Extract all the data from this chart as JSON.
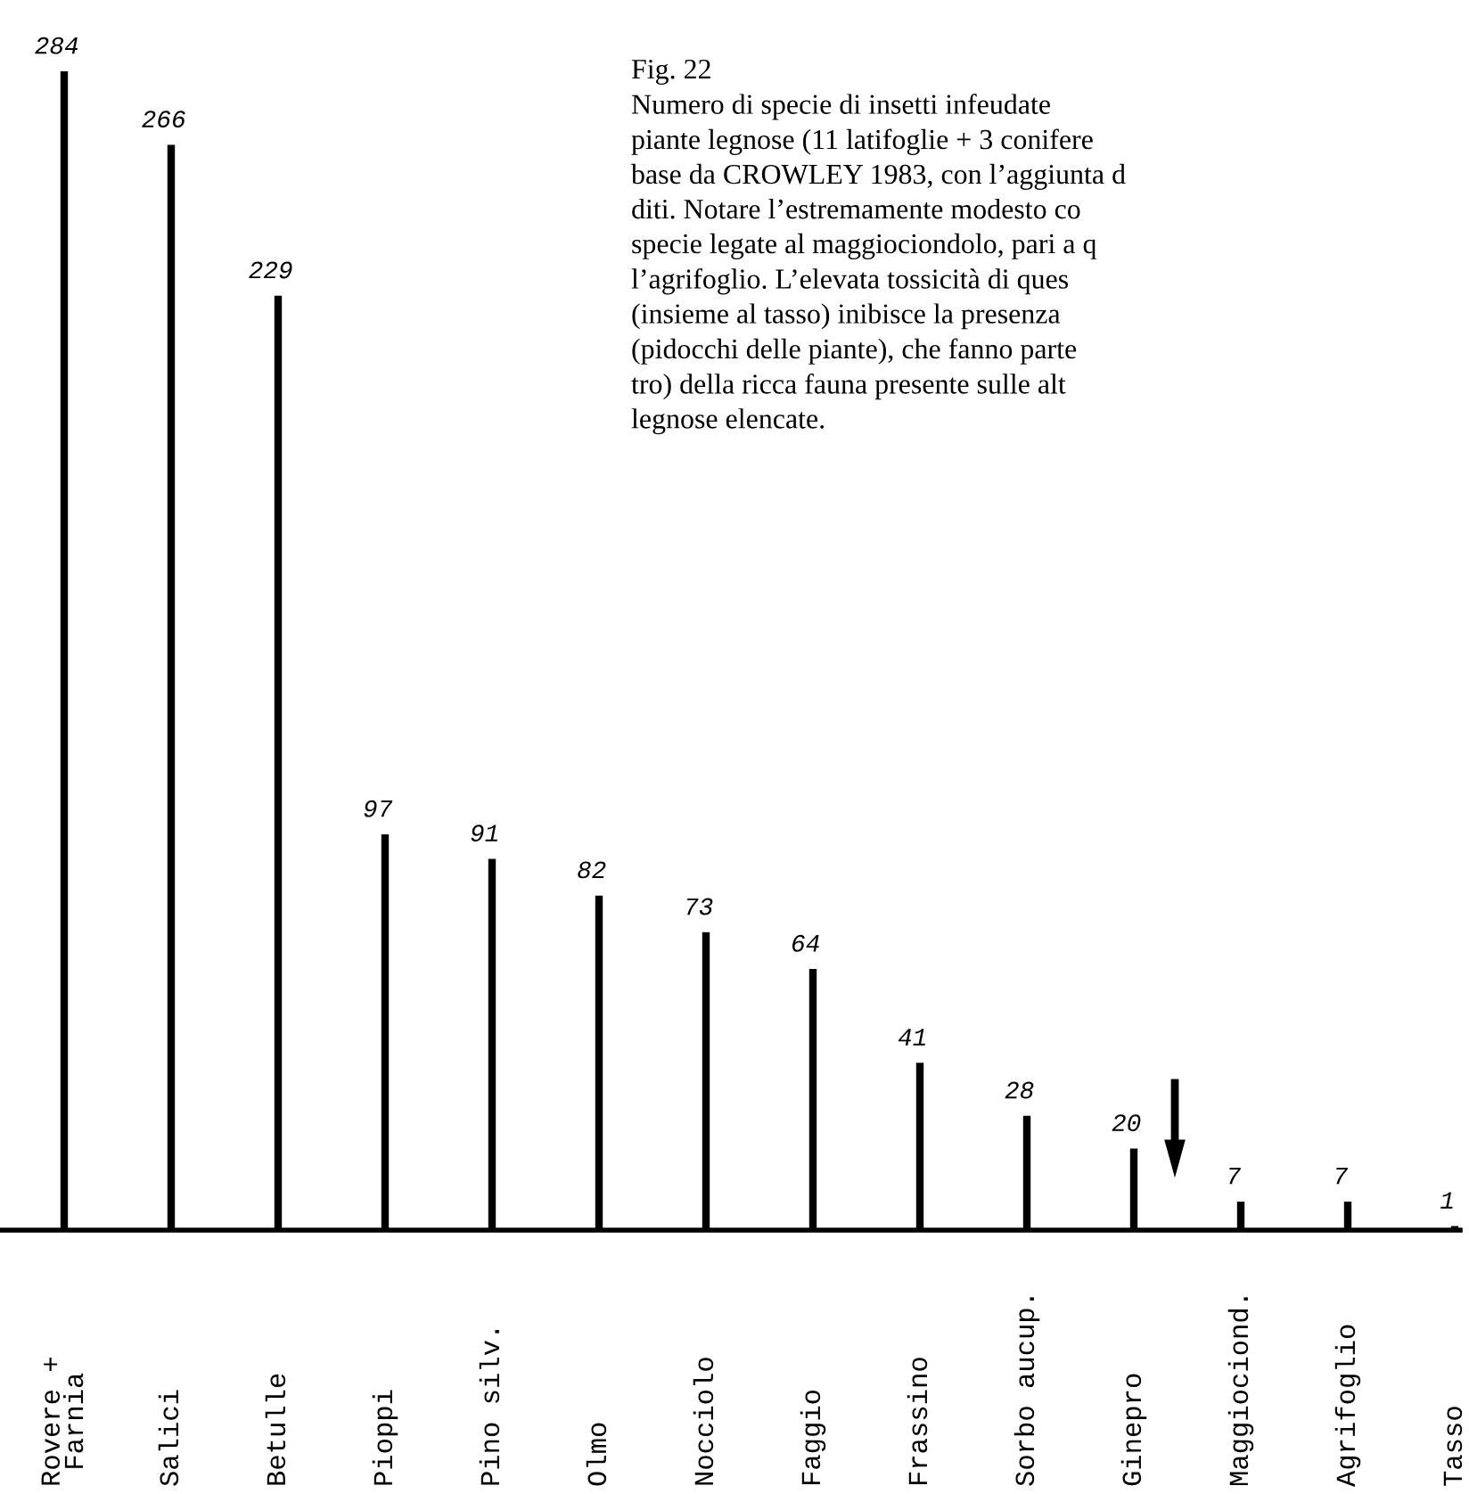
{
  "chart_data": {
    "type": "bar",
    "categories": [
      "Rovere +\nFarnia",
      "Salici",
      "Betulle",
      "Pioppi",
      "Pino silv.",
      "Olmo",
      "Nocciolo",
      "Faggio",
      "Frassino",
      "Sorbo aucup.",
      "Ginepro",
      "Maggiociond.",
      "Agrifoglio",
      "Tasso"
    ],
    "values": [
      284,
      266,
      229,
      97,
      91,
      82,
      73,
      64,
      41,
      28,
      20,
      7,
      7,
      1
    ],
    "color": "#000000",
    "data_labels": true,
    "annotations": [
      "Fig. 22\nNumero di specie di insetti infeudate\npiante legnose (11 latifoglie + 3 conifere\nbase da CROWLEY 1983, con l’aggiunta d\nditi. Notare l’estremamente modesto co\nspecie legate al maggiociondolo, pari a q\nl’agrifoglio. L’elevata tossicità di ques\n(insieme al tasso) inibisce la presenza\n(pidocchi delle piante), che fanno parte\ntro) della ricca fauna presente sulle alt\nlegnose elencate."
    ]
  }
}
